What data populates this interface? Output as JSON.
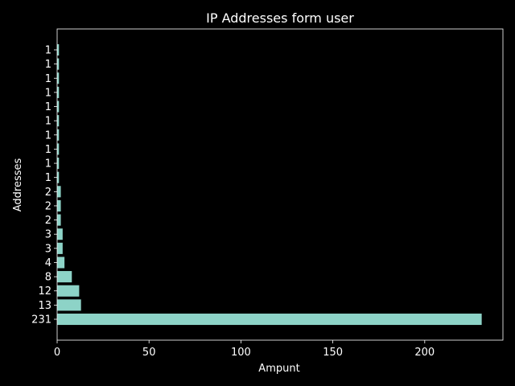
{
  "chart_data": {
    "type": "bar",
    "orientation": "horizontal",
    "title": "IP Addresses form user",
    "xlabel": "Ampunt",
    "ylabel": "Addresses",
    "categories": [
      "231",
      "13",
      "12",
      "8",
      "4",
      "3",
      "3",
      "2",
      "2",
      "2",
      "1",
      "1",
      "1",
      "1",
      "1",
      "1",
      "1",
      "1",
      "1",
      "1"
    ],
    "values": [
      231,
      13,
      12,
      8,
      4,
      3,
      3,
      2,
      2,
      2,
      1,
      1,
      1,
      1,
      1,
      1,
      1,
      1,
      1,
      1
    ],
    "xlim": [
      0,
      242.55
    ],
    "xticks": [
      0,
      50,
      100,
      150,
      200
    ],
    "grid": false,
    "legend": "none",
    "colors": {
      "background": "#000000",
      "bar": "#8dd3c7",
      "text": "#ffffff",
      "axis": "#ffffff"
    }
  }
}
